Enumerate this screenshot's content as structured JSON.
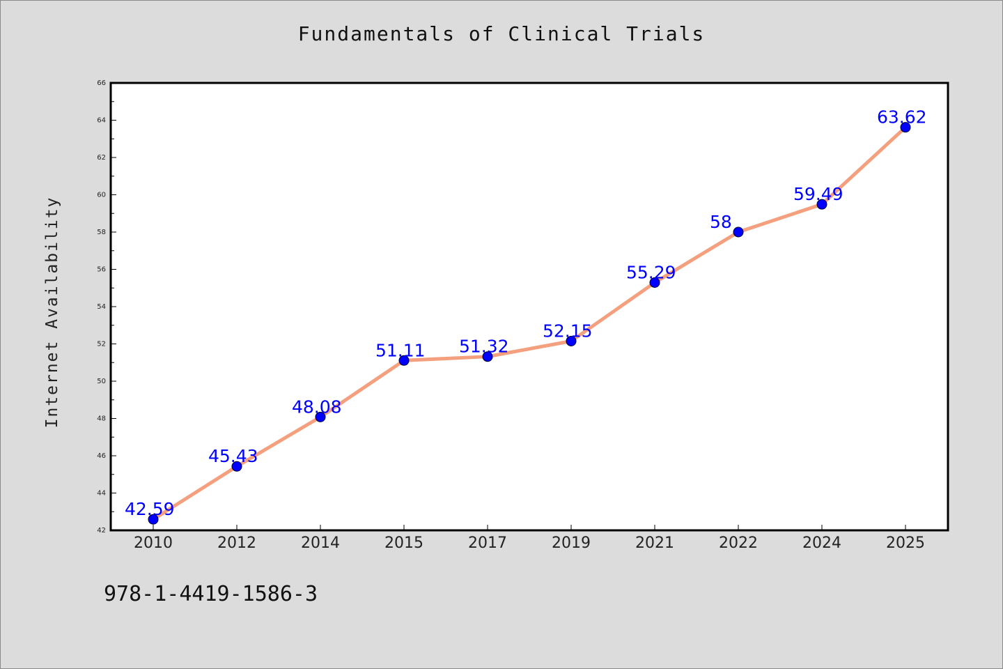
{
  "chart_data": {
    "type": "line",
    "title": "Fundamentals of Clinical Trials",
    "xlabel": "",
    "ylabel": "Internet Availability",
    "categories": [
      "2010",
      "2012",
      "2014",
      "2015",
      "2017",
      "2019",
      "2021",
      "2022",
      "2024",
      "2025"
    ],
    "series": [
      {
        "values": [
          42.59,
          45.43,
          48.08,
          51.11,
          51.32,
          52.15,
          55.29,
          58,
          59.49,
          63.62
        ],
        "labels": [
          "42.59",
          "45.43",
          "48.08",
          "51.11",
          "51.32",
          "52.15",
          "55.29",
          "58",
          "59.49",
          "63.62"
        ]
      }
    ],
    "ylim": [
      42,
      66
    ],
    "y_ticks": [
      "42",
      "44",
      "46",
      "48",
      "50",
      "52",
      "54",
      "56",
      "58",
      "60",
      "62",
      "64",
      "66"
    ],
    "grid": false,
    "legend": "none",
    "colors": {
      "line": "#f4a07e",
      "marker": "#0000ff",
      "data_label": "#0000ff",
      "background": "#dcdcdc",
      "plot_background": "#ffffff"
    }
  },
  "footer_text": "978-1-4419-1586-3"
}
